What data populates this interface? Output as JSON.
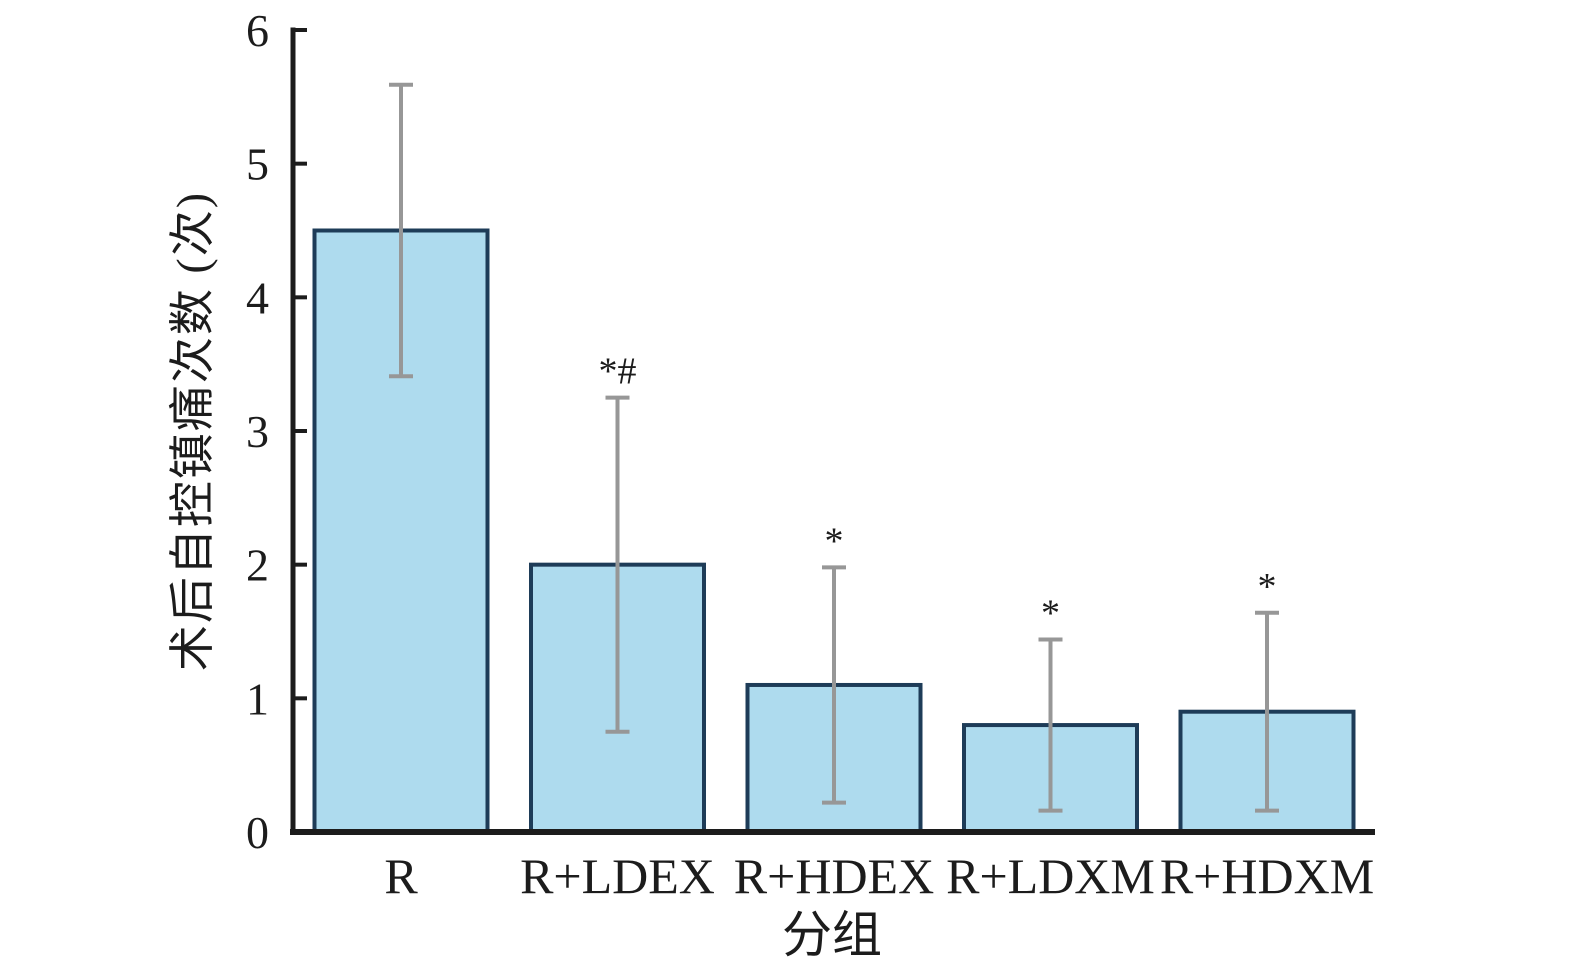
{
  "chart_data": {
    "type": "bar",
    "title": "",
    "categories": [
      "R",
      "R+LDEX",
      "R+HDEX",
      "R+LDXM",
      "R+HDXM"
    ],
    "values": [
      4.5,
      2.0,
      1.1,
      0.8,
      0.9
    ],
    "errors": [
      1.09,
      1.25,
      0.88,
      0.64,
      0.74
    ],
    "annotations": [
      "",
      "*#",
      "*",
      "*",
      "*"
    ],
    "xlabel": "分组",
    "ylabel": "术后自控镇痛次数 (次)",
    "ylim": [
      0,
      6
    ],
    "yticks": [
      0,
      1,
      2,
      3,
      4,
      5,
      6
    ],
    "grid": false,
    "legend": "none",
    "colors": {
      "bar_fill": "#AEDBEE",
      "bar_stroke": "#1E3C58",
      "error_bar": "#979797",
      "axis": "#1C1C1C",
      "text": "#1C1C1C",
      "background": "#FFFFFF"
    }
  }
}
